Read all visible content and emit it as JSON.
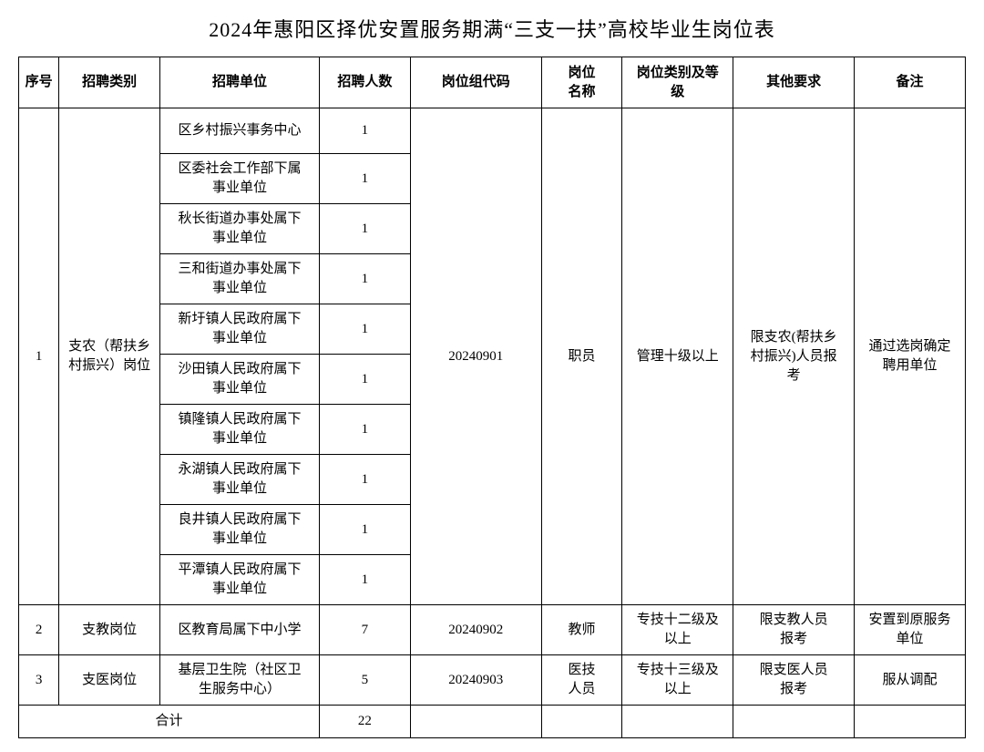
{
  "title": "2024年惠阳区择优安置服务期满“三支一扶”高校毕业生岗位表",
  "headers": {
    "seq": "序号",
    "category": "招聘类别",
    "unit": "招聘单位",
    "count": "招聘人数",
    "code": "岗位组代码",
    "name": "岗位\n名称",
    "level": "岗位类别及等\n级",
    "req": "其他要求",
    "note": "备注"
  },
  "group1": {
    "seq": "1",
    "category": "支农（帮扶乡\n村振兴）岗位",
    "units": [
      {
        "name": "区乡村振兴事务中心",
        "count": "1"
      },
      {
        "name": "区委社会工作部下属\n事业单位",
        "count": "1"
      },
      {
        "name": "秋长街道办事处属下\n事业单位",
        "count": "1"
      },
      {
        "name": "三和街道办事处属下\n事业单位",
        "count": "1"
      },
      {
        "name": "新圩镇人民政府属下\n事业单位",
        "count": "1"
      },
      {
        "name": "沙田镇人民政府属下\n事业单位",
        "count": "1"
      },
      {
        "name": "镇隆镇人民政府属下\n事业单位",
        "count": "1"
      },
      {
        "name": "永湖镇人民政府属下\n事业单位",
        "count": "1"
      },
      {
        "name": "良井镇人民政府属下\n事业单位",
        "count": "1"
      },
      {
        "name": "平潭镇人民政府属下\n事业单位",
        "count": "1"
      }
    ],
    "code": "20240901",
    "posName": "职员",
    "level": "管理十级以上",
    "req": "限支农(帮扶乡\n村振兴)人员报\n考",
    "note": "通过选岗确定\n聘用单位"
  },
  "row2": {
    "seq": "2",
    "category": "支教岗位",
    "unit": "区教育局属下中小学",
    "count": "7",
    "code": "20240902",
    "posName": "教师",
    "level": "专技十二级及\n以上",
    "req": "限支教人员\n报考",
    "note": "安置到原服务\n单位"
  },
  "row3": {
    "seq": "3",
    "category": "支医岗位",
    "unit": "基层卫生院（社区卫\n生服务中心）",
    "count": "5",
    "code": "20240903",
    "posName": "医技\n人员",
    "level": "专技十三级及\n以上",
    "req": "限支医人员\n报考",
    "note": "服从调配"
  },
  "total": {
    "label": "合计",
    "count": "22"
  }
}
